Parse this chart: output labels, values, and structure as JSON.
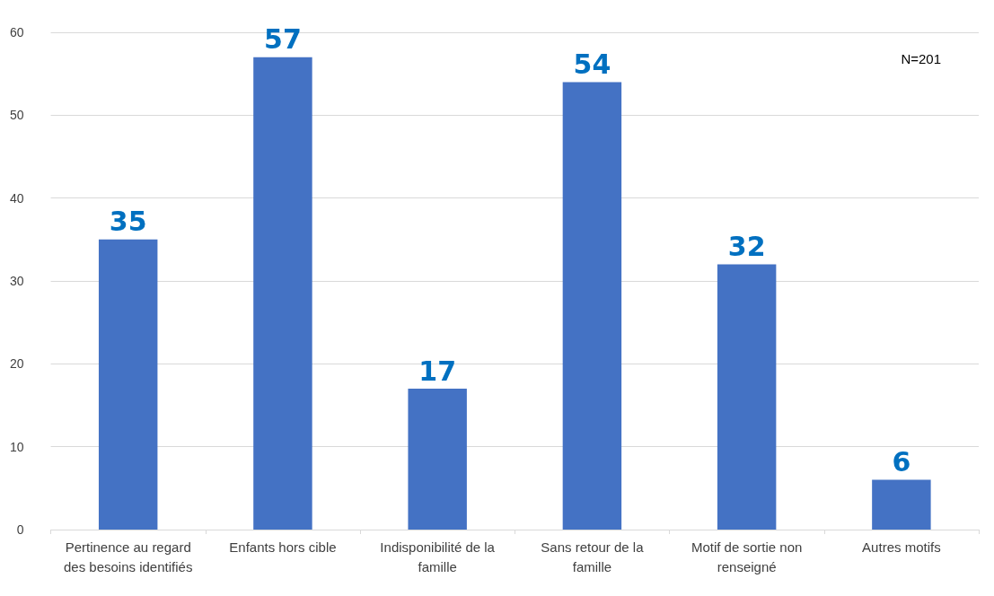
{
  "chart_data": {
    "type": "bar",
    "categories": [
      "Pertinence au regard\ndes besoins identifiés",
      "Enfants hors cible",
      "Indisponibilité de la\nfamille",
      "Sans retour de la\nfamille",
      "Motif de sortie non\nrenseigné",
      "Autres motifs"
    ],
    "values": [
      35,
      57,
      17,
      54,
      32,
      6
    ],
    "color": "#4472c4",
    "ylim": [
      0,
      60
    ],
    "yticks": [
      0,
      10,
      20,
      30,
      40,
      50,
      60
    ],
    "grid": "y",
    "data_labels": true,
    "annotations": [
      "N=201"
    ]
  }
}
